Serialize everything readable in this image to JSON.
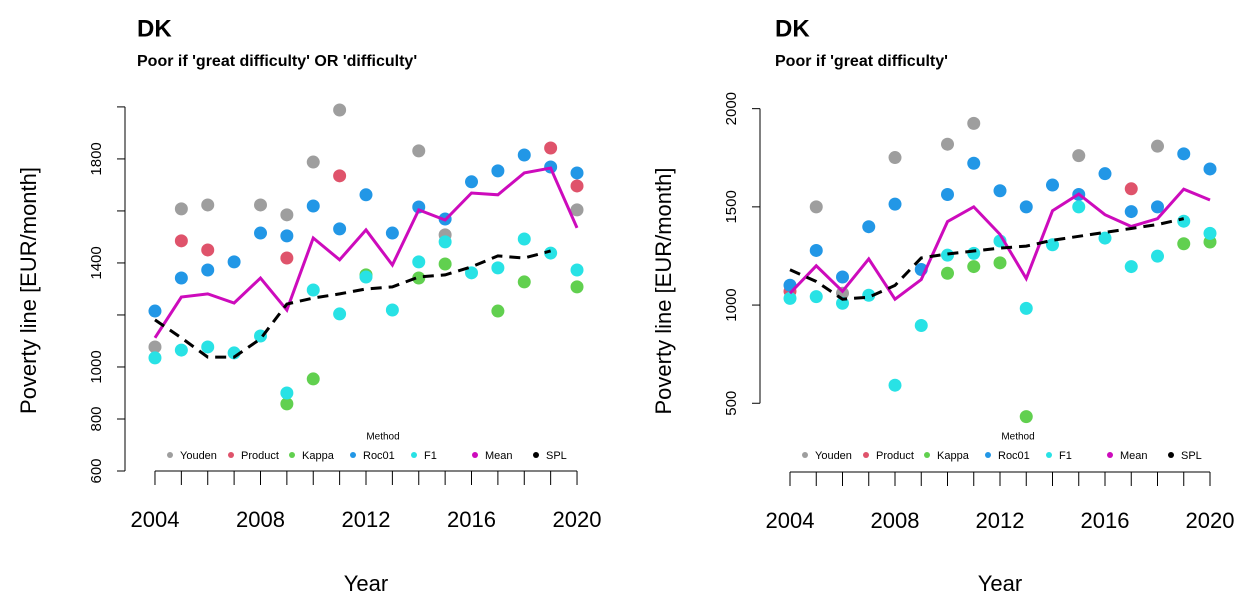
{
  "chart_data": [
    {
      "type": "scatter",
      "title": "DK",
      "subtitle": "Poor if 'great difficulty' OR 'difficulty'",
      "x_label": "Year",
      "y_label": "Poverty line [EUR/month]",
      "legend_title": "Method",
      "x": [
        2004,
        2005,
        2006,
        2007,
        2008,
        2009,
        2010,
        2011,
        2012,
        2013,
        2014,
        2015,
        2016,
        2017,
        2018,
        2019,
        2020
      ],
      "xlim": [
        2003,
        2021
      ],
      "xticks": [
        2004,
        2008,
        2012,
        2016,
        2020
      ],
      "xminorticks": [
        2004,
        2005,
        2006,
        2007,
        2008,
        2009,
        2010,
        2011,
        2012,
        2013,
        2014,
        2015,
        2016,
        2017,
        2018,
        2019,
        2020
      ],
      "ylim": [
        600,
        2065
      ],
      "yticks": [
        600,
        800,
        1000,
        1400,
        1800
      ],
      "yminorticks": [
        600,
        800,
        1000,
        1200,
        1400,
        1600,
        1800,
        2000
      ],
      "series": [
        {
          "name": "Youden",
          "color": "#9e9e9e",
          "mode": "points",
          "values": [
            1077,
            1608,
            1623,
            null,
            1623,
            1585,
            1788,
            1988,
            null,
            null,
            1831,
            1508,
            null,
            null,
            null,
            null,
            1604
          ]
        },
        {
          "name": "Product",
          "color": "#df536b",
          "mode": "points",
          "values": [
            null,
            1485,
            1450,
            null,
            null,
            1419,
            null,
            1735,
            null,
            null,
            null,
            null,
            null,
            null,
            null,
            1842,
            1696
          ]
        },
        {
          "name": "Kappa",
          "color": "#61d04f",
          "mode": "points",
          "values": [
            null,
            null,
            null,
            null,
            null,
            858,
            954,
            null,
            1354,
            null,
            1342,
            1396,
            null,
            1215,
            1327,
            null,
            1308
          ]
        },
        {
          "name": "Roc01",
          "color": "#2297e6",
          "mode": "points",
          "values": [
            1215,
            1342,
            1373,
            1404,
            1515,
            1504,
            1619,
            1531,
            1662,
            1515,
            1615,
            1569,
            1712,
            1754,
            1815,
            1769,
            1746
          ]
        },
        {
          "name": "F1",
          "color": "#28e2e5",
          "mode": "points",
          "values": [
            1035,
            1065,
            1077,
            1054,
            1119,
            900,
            1296,
            1204,
            1346,
            1219,
            1404,
            1481,
            1362,
            1381,
            1492,
            1438,
            1373
          ]
        },
        {
          "name": "Mean",
          "color": "#cd0bbc",
          "mode": "line",
          "values": [
            1112,
            1269,
            1281,
            1246,
            1342,
            1219,
            1496,
            1412,
            1527,
            1392,
            1604,
            1565,
            1669,
            1662,
            1746,
            1765,
            1535
          ]
        },
        {
          "name": "SPL",
          "color": "#000000",
          "mode": "dashed",
          "values": [
            1181,
            1112,
            1038,
            1038,
            1108,
            1242,
            1265,
            1281,
            1300,
            1308,
            1346,
            1354,
            1385,
            1427,
            1419,
            1446,
            null
          ]
        }
      ]
    },
    {
      "type": "scatter",
      "title": "DK",
      "subtitle": "Poor if 'great difficulty'",
      "x_label": "Year",
      "y_label": "Poverty line [EUR/month]",
      "legend_title": "Method",
      "x": [
        2004,
        2005,
        2006,
        2007,
        2008,
        2009,
        2010,
        2011,
        2012,
        2013,
        2014,
        2015,
        2016,
        2017,
        2018,
        2019,
        2020
      ],
      "xlim": [
        2003,
        2021
      ],
      "xticks": [
        2004,
        2008,
        2012,
        2016,
        2020
      ],
      "xminorticks": [
        2004,
        2005,
        2006,
        2007,
        2008,
        2009,
        2010,
        2011,
        2012,
        2013,
        2014,
        2015,
        2016,
        2017,
        2018,
        2019,
        2020
      ],
      "ylim": [
        150,
        2095
      ],
      "yticks": [
        500,
        1000,
        1500,
        2000
      ],
      "yminorticks": [
        500,
        1000,
        1500,
        2000
      ],
      "series": [
        {
          "name": "Youden",
          "color": "#9e9e9e",
          "mode": "points",
          "values": [
            null,
            1500,
            1060,
            null,
            1751,
            null,
            1819,
            1925,
            null,
            null,
            null,
            1761,
            null,
            null,
            1809,
            null,
            null
          ]
        },
        {
          "name": "Product",
          "color": "#df536b",
          "mode": "points",
          "values": [
            1070,
            null,
            null,
            null,
            null,
            null,
            null,
            null,
            null,
            null,
            null,
            null,
            null,
            1592,
            null,
            null,
            null
          ]
        },
        {
          "name": "Kappa",
          "color": "#61d04f",
          "mode": "points",
          "values": [
            null,
            null,
            null,
            null,
            null,
            null,
            1162,
            1196,
            1215,
            432,
            null,
            null,
            null,
            null,
            null,
            1312,
            1321
          ]
        },
        {
          "name": "Roc01",
          "color": "#2297e6",
          "mode": "points",
          "values": [
            1101,
            1278,
            1143,
            1399,
            1514,
            1181,
            1563,
            1722,
            1582,
            1500,
            1611,
            1563,
            1669,
            1476,
            1500,
            1770,
            1693
          ]
        },
        {
          "name": "F1",
          "color": "#28e2e5",
          "mode": "points",
          "values": [
            1034,
            1043,
            1009,
            1050,
            592,
            896,
            1254,
            1263,
            1326,
            983,
            1307,
            1500,
            1341,
            1196,
            1249,
            1427,
            1365
          ]
        },
        {
          "name": "Mean",
          "color": "#cd0bbc",
          "mode": "line",
          "values": [
            1060,
            1200,
            1070,
            1235,
            1030,
            1130,
            1425,
            1500,
            1360,
            1135,
            1480,
            1565,
            1460,
            1400,
            1440,
            1590,
            1535
          ]
        },
        {
          "name": "SPL",
          "color": "#000000",
          "mode": "dashed",
          "values": [
            1180,
            1120,
            1030,
            1040,
            1100,
            1240,
            1260,
            1275,
            1290,
            1300,
            1330,
            1350,
            1370,
            1390,
            1410,
            1440,
            null
          ]
        }
      ]
    }
  ]
}
